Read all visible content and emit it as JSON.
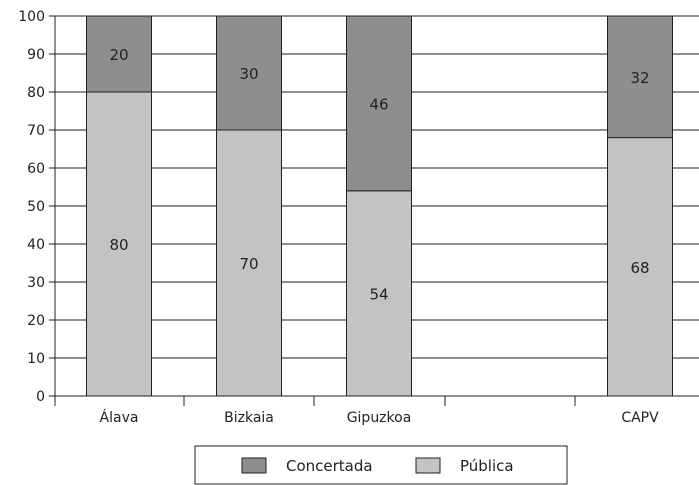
{
  "chart_data": {
    "type": "bar",
    "stacked": true,
    "categories": [
      "Álava",
      "Bizkaia",
      "Gipuzkoa",
      "",
      "CAPV"
    ],
    "series": [
      {
        "name": "Pública",
        "values": [
          80,
          70,
          54,
          null,
          68
        ],
        "color": "#c3c3c3"
      },
      {
        "name": "Concertada",
        "values": [
          20,
          30,
          46,
          null,
          32
        ],
        "color": "#8e8e8e"
      }
    ],
    "ylim": [
      0,
      100
    ],
    "yticks": [
      0,
      10,
      20,
      30,
      40,
      50,
      60,
      70,
      80,
      90,
      100
    ],
    "title": "",
    "xlabel": "",
    "ylabel": "",
    "grid": true,
    "legend": {
      "position": "bottom-center",
      "order": [
        "Concertada",
        "Pública"
      ]
    }
  }
}
